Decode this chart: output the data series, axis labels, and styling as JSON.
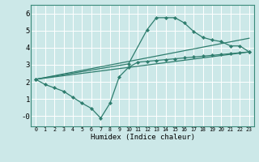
{
  "xlabel": "Humidex (Indice chaleur)",
  "background_color": "#cce8e8",
  "grid_color": "#ffffff",
  "line_color": "#2e7d6e",
  "xlim": [
    -0.5,
    23.5
  ],
  "ylim": [
    -0.6,
    6.5
  ],
  "xticks": [
    0,
    1,
    2,
    3,
    4,
    5,
    6,
    7,
    8,
    9,
    10,
    11,
    12,
    13,
    14,
    15,
    16,
    17,
    18,
    19,
    20,
    21,
    22,
    23
  ],
  "yticks": [
    0,
    1,
    2,
    3,
    4,
    5,
    6
  ],
  "ytick_labels": [
    "-0",
    "1",
    "2",
    "3",
    "4",
    "5",
    "6"
  ],
  "lines": [
    {
      "x": [
        0,
        1,
        2,
        3,
        4,
        5,
        6,
        7,
        8,
        9,
        10,
        11,
        12,
        13,
        14,
        15,
        16,
        17,
        18,
        19,
        20,
        21,
        22,
        23
      ],
      "y": [
        2.15,
        1.85,
        1.65,
        1.45,
        1.1,
        0.75,
        0.45,
        -0.12,
        0.75,
        2.3,
        2.85,
        3.15,
        3.2,
        3.25,
        3.3,
        3.35,
        3.4,
        3.45,
        3.5,
        3.55,
        3.6,
        3.65,
        3.7,
        3.75
      ],
      "markers": true
    },
    {
      "x": [
        0,
        10,
        12,
        13,
        14,
        15,
        16,
        17,
        18,
        19,
        20,
        21,
        22,
        23
      ],
      "y": [
        2.15,
        3.05,
        5.05,
        5.75,
        5.75,
        5.75,
        5.45,
        4.95,
        4.6,
        4.45,
        4.35,
        4.1,
        4.1,
        3.75
      ],
      "markers": true
    },
    {
      "x": [
        0,
        23
      ],
      "y": [
        2.15,
        3.75
      ],
      "markers": false
    },
    {
      "x": [
        0,
        23
      ],
      "y": [
        2.15,
        4.55
      ],
      "markers": false
    }
  ]
}
